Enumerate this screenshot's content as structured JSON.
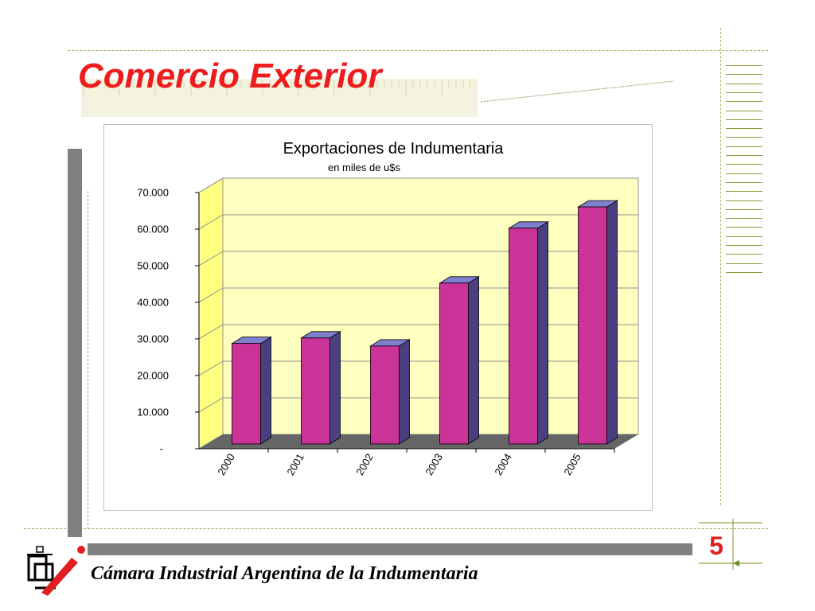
{
  "slide": {
    "title": "Comercio Exterior",
    "footer": "Cámara Industrial Argentina de la Indumentaria",
    "page_number": "5"
  },
  "colors": {
    "title": "#ee1c1c",
    "bar_front": "#cc3399",
    "bar_side": "#4a4080",
    "bar_top": "#7f7fd0",
    "plot_back": "#ffffc0",
    "plot_side": "#ffff80",
    "floor": "#666666",
    "gray_bar": "#808080",
    "dash_line": "#a8b060"
  },
  "chart_data": {
    "type": "bar",
    "title": "Exportaciones de Indumentaria",
    "subtitle": "en miles de u$s",
    "categories": [
      "2000",
      "2001",
      "2002",
      "2003",
      "2004",
      "2005"
    ],
    "values": [
      30500,
      32000,
      29800,
      47000,
      62000,
      67800
    ],
    "ylim": [
      0,
      70000
    ],
    "y_ticks": [
      {
        "value": 0,
        "label": "-"
      },
      {
        "value": 10000,
        "label": "10.000"
      },
      {
        "value": 20000,
        "label": "20.000"
      },
      {
        "value": 30000,
        "label": "30.000"
      },
      {
        "value": 40000,
        "label": "40.000"
      },
      {
        "value": 50000,
        "label": "50.000"
      },
      {
        "value": 60000,
        "label": "60.000"
      },
      {
        "value": 70000,
        "label": "70.000"
      }
    ],
    "grid": true,
    "legend": "none",
    "style": "3d"
  }
}
